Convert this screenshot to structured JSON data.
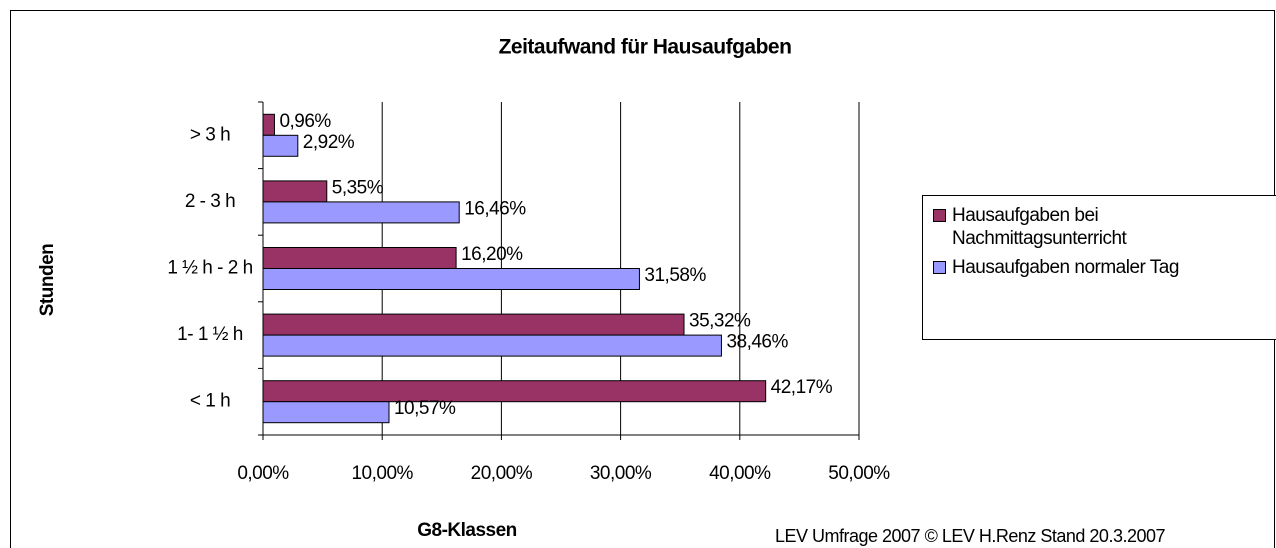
{
  "chart_data": {
    "type": "hbar",
    "title": "Zeitaufwand für Hausaufgaben",
    "categories": [
      "> 3 h",
      "2 - 3 h",
      "1 ½ h -  2 h",
      "1- 1 ½ h",
      "< 1 h"
    ],
    "series": [
      {
        "name": "Hausaufgaben bei Nachmittagsunterricht",
        "color": "#993366",
        "values": [
          0.96,
          5.35,
          16.2,
          35.32,
          42.17
        ],
        "value_labels": [
          "0,96%",
          "5,35%",
          "16,20%",
          "35,32%",
          "42,17%"
        ]
      },
      {
        "name": "Hausaufgaben normaler Tag",
        "color": "#9999ff",
        "values": [
          2.92,
          16.46,
          31.58,
          38.46,
          10.57
        ],
        "value_labels": [
          "2,92%",
          "16,46%",
          "31,58%",
          "38,46%",
          "10,57%"
        ]
      }
    ],
    "xlim": [
      0,
      50
    ],
    "xticks": [
      {
        "value": 0,
        "label": "0,00%"
      },
      {
        "value": 10,
        "label": "10,00%"
      },
      {
        "value": 20,
        "label": "20,00%"
      },
      {
        "value": 30,
        "label": "30,00%"
      },
      {
        "value": 40,
        "label": "40,00%"
      },
      {
        "value": 50,
        "label": "50,00%"
      }
    ],
    "grid": true,
    "legend": "right",
    "x_label": "G8-Klassen",
    "y_label": "Stunden",
    "footnote": "LEV Umfrage 2007  © LEV    H.Renz   Stand 20.3.2007"
  }
}
